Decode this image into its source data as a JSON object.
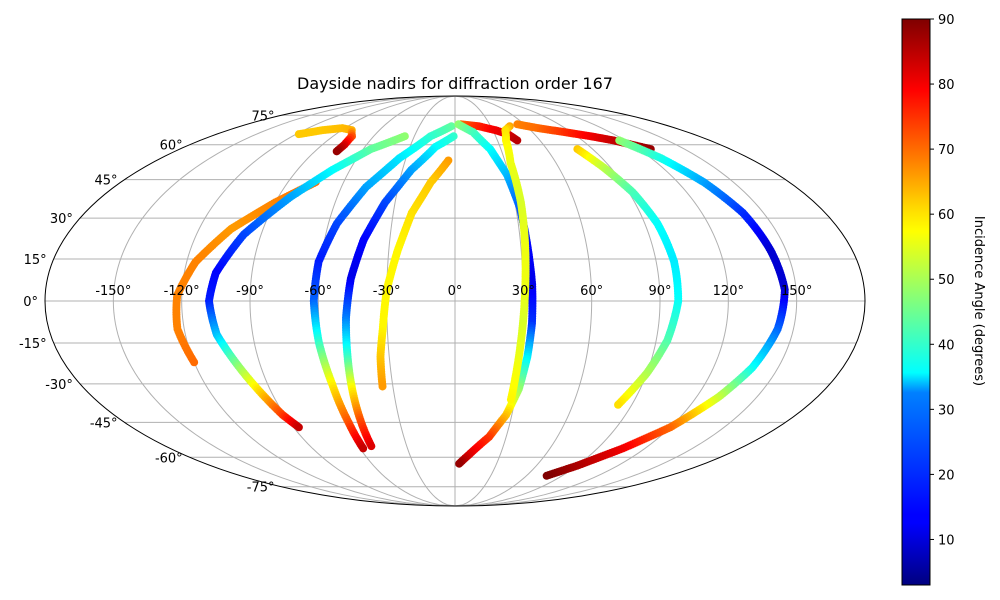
{
  "chart_data": {
    "type": "scatter",
    "projection": "mollweide",
    "title": "Dayside nadirs for diffraction order 167",
    "grid": true,
    "xlim": [
      -180,
      180
    ],
    "ylim": [
      -90,
      90
    ],
    "lon_tick_labels": [
      "-150°",
      "-120°",
      "-90°",
      "-60°",
      "-30°",
      "0°",
      "30°",
      "60°",
      "90°",
      "120°",
      "150°"
    ],
    "lat_tick_labels": [
      "75°",
      "60°",
      "45°",
      "30°",
      "15°",
      "0°",
      "-15°",
      "-30°",
      "-45°",
      "-60°",
      "-75°"
    ],
    "colorbar": {
      "label": "Incidence Angle (degrees)",
      "colormap": "jet",
      "vmin": 3,
      "vmax": 90,
      "tick_labels": [
        "10",
        "20",
        "30",
        "40",
        "50",
        "60",
        "70",
        "80",
        "90"
      ]
    },
    "series": [
      {
        "points": [
          [
            -118,
            65,
            62
          ],
          [
            -105,
            67,
            62
          ],
          [
            -92,
            68,
            63
          ],
          [
            -82,
            67,
            64
          ],
          [
            -76,
            64,
            72
          ],
          [
            -75,
            60,
            82
          ],
          [
            -76,
            57,
            88
          ]
        ]
      },
      {
        "points": [
          [
            -75,
            44,
            70
          ],
          [
            -90,
            36,
            68
          ],
          [
            -105,
            26,
            66
          ],
          [
            -116,
            14,
            68
          ],
          [
            -122,
            2,
            68
          ],
          [
            -123,
            -10,
            68
          ],
          [
            -120,
            -22,
            70
          ]
        ]
      },
      {
        "points": [
          [
            -37,
            64,
            48
          ],
          [
            -55,
            58,
            44
          ],
          [
            -70,
            49,
            36
          ],
          [
            -84,
            38,
            28
          ],
          [
            -98,
            24,
            20
          ],
          [
            -106,
            10,
            14
          ],
          [
            -108,
            0,
            16
          ],
          [
            -106,
            -12,
            30
          ],
          [
            -100,
            -24,
            48
          ],
          [
            -95,
            -34,
            62
          ],
          [
            -91,
            -42,
            74
          ],
          [
            -87,
            -47,
            84
          ]
        ]
      },
      {
        "points": [
          [
            -3,
            69,
            44
          ],
          [
            -18,
            64,
            40
          ],
          [
            -34,
            54,
            34
          ],
          [
            -47,
            42,
            28
          ],
          [
            -56,
            28,
            20
          ],
          [
            -61,
            14,
            16
          ],
          [
            -62,
            0,
            22
          ],
          [
            -61,
            -15,
            40
          ],
          [
            -59,
            -30,
            58
          ],
          [
            -58,
            -45,
            72
          ],
          [
            -58,
            -56,
            84
          ]
        ]
      },
      {
        "points": [
          [
            -1,
            64,
            40
          ],
          [
            -13,
            59,
            36
          ],
          [
            -25,
            49,
            28
          ],
          [
            -35,
            36,
            20
          ],
          [
            -42,
            22,
            14
          ],
          [
            -46,
            8,
            12
          ],
          [
            -48,
            -6,
            24
          ],
          [
            -49,
            -20,
            40
          ],
          [
            -50,
            -32,
            58
          ],
          [
            -51,
            -44,
            72
          ],
          [
            -52,
            -55,
            82
          ]
        ]
      },
      {
        "points": [
          [
            -4,
            53,
            66
          ],
          [
            -13,
            44,
            62
          ],
          [
            -21,
            32,
            60
          ],
          [
            -26,
            18,
            58
          ],
          [
            -30,
            4,
            58
          ],
          [
            -32,
            -10,
            58
          ],
          [
            -34,
            -20,
            62
          ],
          [
            -35,
            -31,
            66
          ]
        ]
      },
      {
        "points": [
          [
            5,
            70,
            70
          ],
          [
            20,
            69,
            76
          ],
          [
            32,
            67,
            80
          ],
          [
            40,
            65,
            82
          ],
          [
            44,
            62,
            85
          ]
        ]
      },
      {
        "points": [
          [
            3,
            70,
            48
          ],
          [
            14,
            66,
            42
          ],
          [
            23,
            58,
            36
          ],
          [
            29,
            47,
            30
          ],
          [
            32,
            34,
            22
          ],
          [
            33,
            20,
            14
          ],
          [
            34,
            6,
            12
          ],
          [
            34,
            -8,
            18
          ],
          [
            33,
            -20,
            34
          ],
          [
            31,
            -32,
            48
          ],
          [
            27,
            -42,
            62
          ],
          [
            20,
            -51,
            74
          ],
          [
            9,
            -59,
            82
          ],
          [
            3,
            -63,
            88
          ]
        ]
      },
      {
        "points": [
          [
            46,
            69,
            65
          ],
          [
            40,
            67,
            60
          ],
          [
            36,
            62,
            58
          ],
          [
            33,
            52,
            56
          ],
          [
            33,
            36,
            54
          ],
          [
            32,
            20,
            56
          ],
          [
            31,
            6,
            56
          ],
          [
            30,
            -8,
            54
          ],
          [
            29,
            -22,
            56
          ],
          [
            28,
            -36,
            58
          ]
        ]
      },
      {
        "points": [
          [
            80,
            58,
            62
          ],
          [
            86,
            50,
            52
          ],
          [
            92,
            40,
            42
          ],
          [
            96,
            28,
            36
          ],
          [
            98,
            14,
            34
          ],
          [
            98,
            0,
            36
          ],
          [
            95,
            -14,
            42
          ],
          [
            90,
            -26,
            50
          ],
          [
            83,
            -38,
            60
          ]
        ]
      },
      {
        "points": [
          [
            54,
            70,
            68
          ],
          [
            68,
            68,
            70
          ],
          [
            85,
            66,
            75
          ],
          [
            100,
            64,
            80
          ],
          [
            112,
            62,
            84
          ],
          [
            128,
            58,
            88
          ]
        ]
      },
      {
        "points": [
          [
            116,
            62,
            48
          ],
          [
            126,
            54,
            38
          ],
          [
            134,
            44,
            28
          ],
          [
            140,
            32,
            18
          ],
          [
            143,
            18,
            10
          ],
          [
            145,
            4,
            10
          ],
          [
            143,
            -10,
            22
          ],
          [
            138,
            -24,
            36
          ],
          [
            131,
            -35,
            52
          ],
          [
            120,
            -47,
            70
          ],
          [
            106,
            -56,
            80
          ],
          [
            90,
            -64,
            86
          ],
          [
            77,
            -69,
            90
          ]
        ]
      }
    ]
  }
}
